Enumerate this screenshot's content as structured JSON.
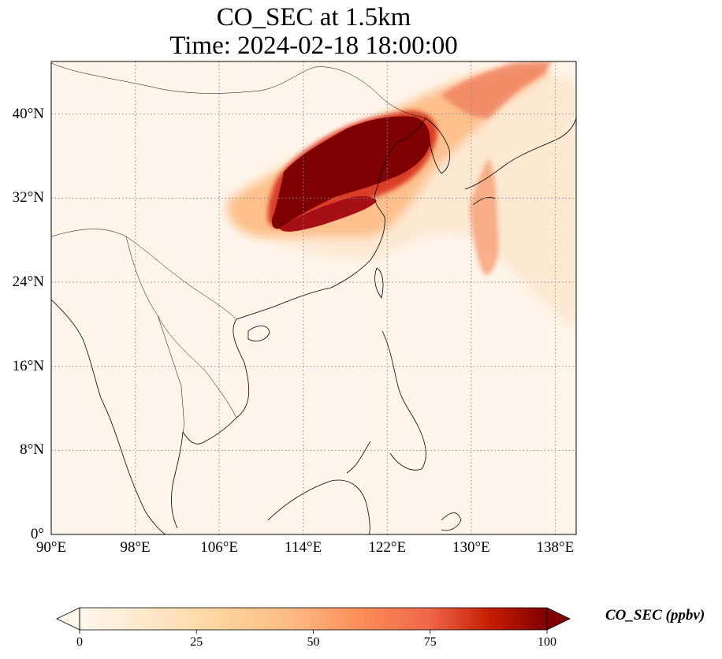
{
  "title_line1": "CO_SEC at 1.5km",
  "title_line2": "Time: 2024-02-18 18:00:00",
  "map": {
    "projection": "PlateCarree",
    "lon_range": [
      90,
      140
    ],
    "lat_range": [
      0,
      45
    ],
    "gridlines": "dotted gray",
    "coastlines": true,
    "borders": true,
    "xticks": [
      {
        "lon": 90,
        "label": "90°E"
      },
      {
        "lon": 98,
        "label": "98°E"
      },
      {
        "lon": 106,
        "label": "106°E"
      },
      {
        "lon": 114,
        "label": "114°E"
      },
      {
        "lon": 122,
        "label": "122°E"
      },
      {
        "lon": 130,
        "label": "130°E"
      },
      {
        "lon": 138,
        "label": "138°E"
      }
    ],
    "yticks": [
      {
        "lat": 0,
        "label": "0°"
      },
      {
        "lat": 8,
        "label": "8°N"
      },
      {
        "lat": 16,
        "label": "16°N"
      },
      {
        "lat": 24,
        "label": "24°N"
      },
      {
        "lat": 32,
        "label": "32°N"
      },
      {
        "lat": 40,
        "label": "40°N"
      }
    ]
  },
  "colorbar": {
    "label": "CO_SEC (ppbv)",
    "colormap": "OrRd",
    "range": [
      0,
      100
    ],
    "extend": "both",
    "ticks": [
      {
        "value": 0,
        "label": "0"
      },
      {
        "value": 25,
        "label": "25"
      },
      {
        "value": 50,
        "label": "50"
      },
      {
        "value": 75,
        "label": "75"
      },
      {
        "value": 100,
        "label": "100"
      }
    ]
  },
  "colors": {
    "background": "#fff5eb",
    "low": "#fdd49e",
    "mid": "#fc8d59",
    "high": "#d7301f",
    "max": "#7f0000",
    "coastline": "#000000",
    "grid": "#888888"
  }
}
